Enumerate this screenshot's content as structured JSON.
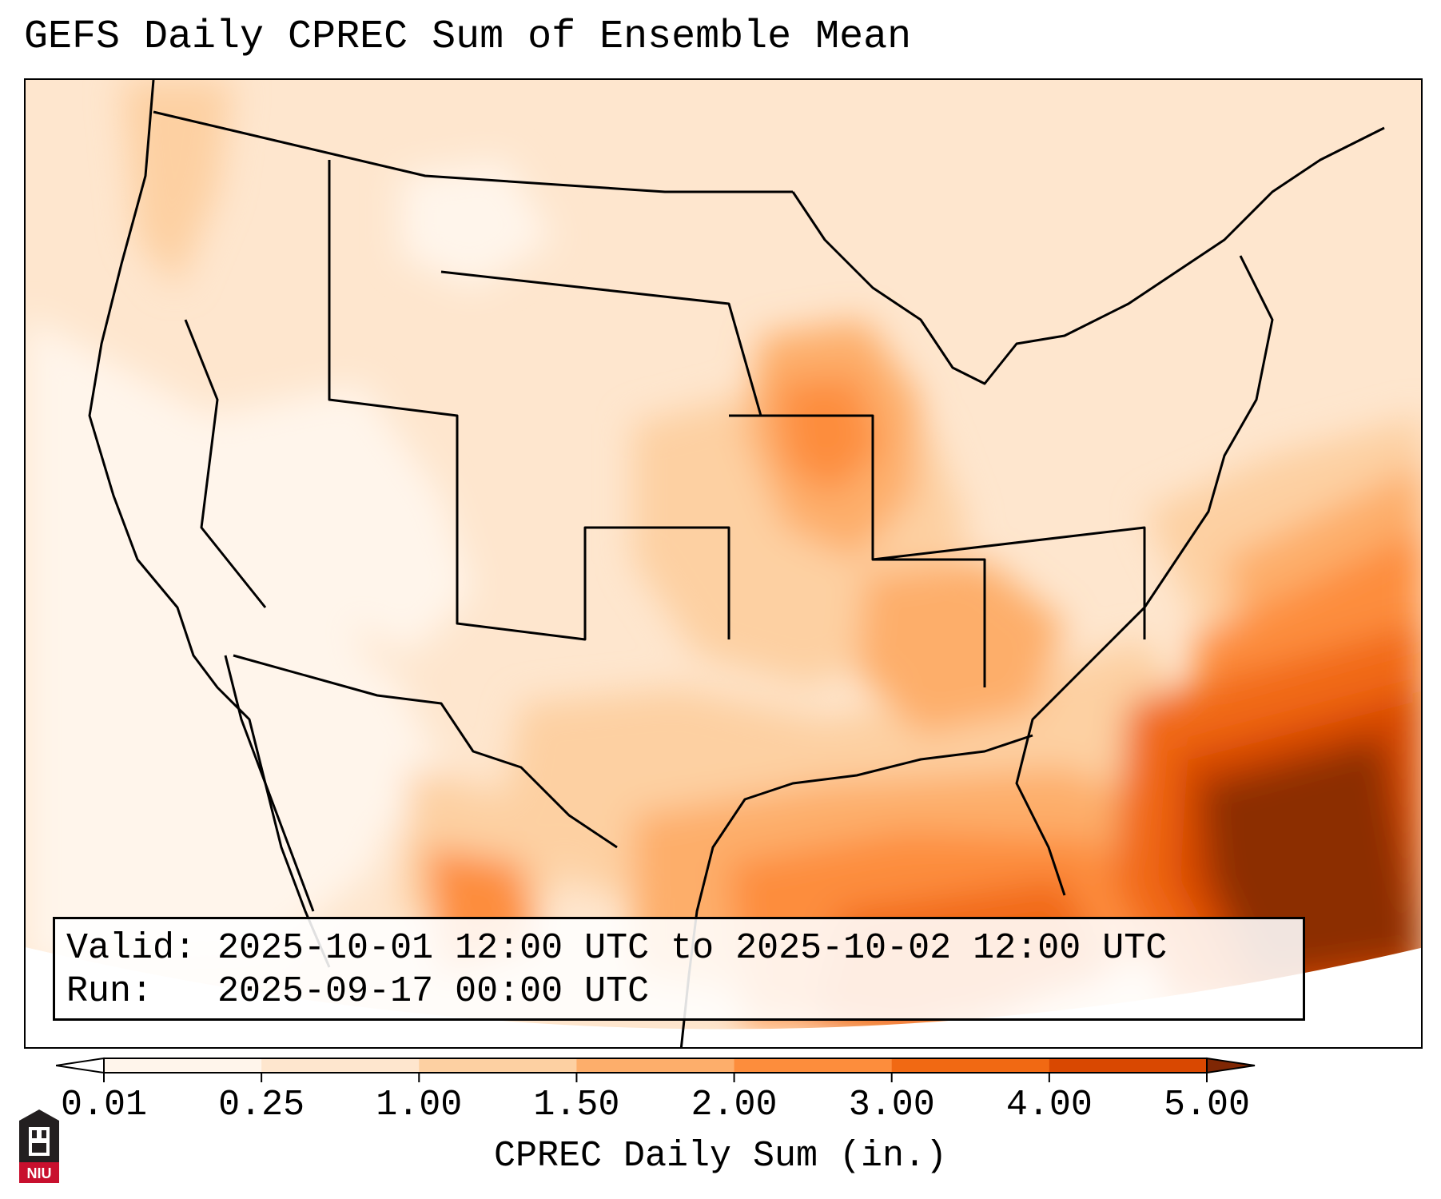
{
  "title": "GEFS Daily CPREC Sum of Ensemble Mean",
  "info": {
    "valid_line": "Valid: 2025-10-01 12:00 UTC to 2025-10-02 12:00 UTC",
    "run_line": "Run:   2025-09-17 00:00 UTC"
  },
  "colorbar": {
    "label": "CPREC Daily Sum (in.)",
    "ticks": [
      "0.01",
      "0.25",
      "1.00",
      "1.50",
      "2.00",
      "3.00",
      "4.00",
      "5.00"
    ],
    "colors": [
      "#fff5eb",
      "#fee6ce",
      "#fdd0a2",
      "#fdae6b",
      "#fd8d3c",
      "#f16913",
      "#d94801",
      "#8c2d04"
    ],
    "under_color": "#ffffff",
    "over_color": "#7f2704"
  },
  "logo": {
    "text": "NIU",
    "color": "#c8102e"
  }
}
